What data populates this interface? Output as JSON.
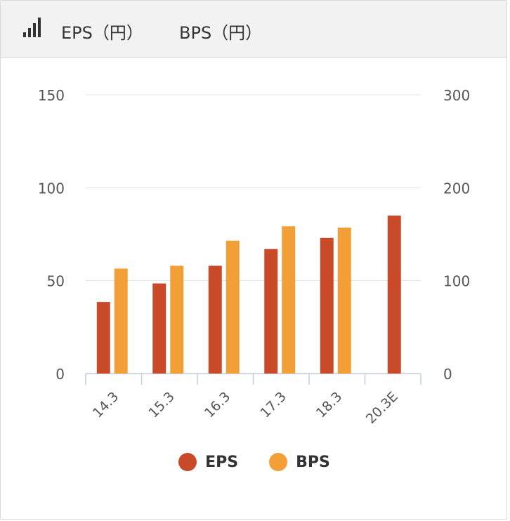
{
  "header": {
    "title_eps": "EPS（円）",
    "title_bps": "BPS（円）"
  },
  "colors": {
    "eps": "#c94a29",
    "bps": "#f39f37",
    "grid": "#dfe3ea",
    "axis": "#c0cce0"
  },
  "chart_data": {
    "type": "bar",
    "categories": [
      "14.3",
      "15.3",
      "16.3",
      "17.3",
      "18.3",
      "20.3E"
    ],
    "series": [
      {
        "name": "EPS",
        "axis": "left",
        "values": [
          38.5,
          48.5,
          58.0,
          67.0,
          73.0,
          85.0
        ]
      },
      {
        "name": "BPS",
        "axis": "right",
        "values": [
          113.0,
          116.0,
          143.0,
          158.5,
          157.0,
          null
        ]
      }
    ],
    "y_left": {
      "ylim": [
        0,
        150
      ],
      "ticks": [
        "0",
        "50",
        "100",
        "150"
      ]
    },
    "y_right": {
      "ylim": [
        0,
        300
      ],
      "ticks": [
        "0",
        "100",
        "200",
        "300"
      ]
    },
    "grid": true,
    "legend_position": "bottom-center"
  },
  "legend": [
    {
      "label": "EPS"
    },
    {
      "label": "BPS"
    }
  ]
}
